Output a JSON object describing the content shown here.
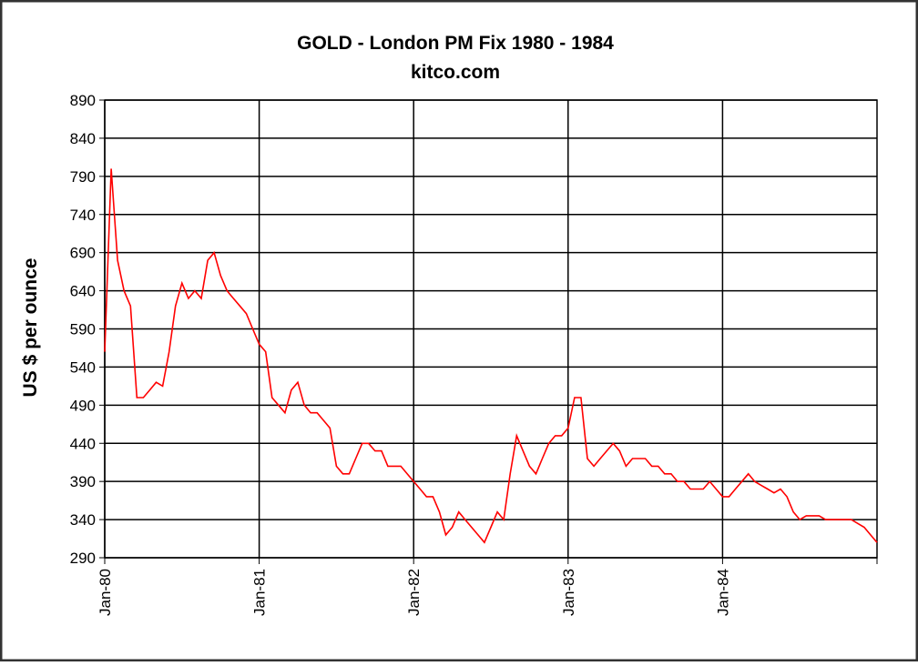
{
  "chart_data": {
    "type": "line",
    "title": "GOLD  -  London  PM  Fix  1980  -  1984",
    "subtitle": "kitco.com",
    "y_label": "US $ per ounce",
    "categories": [
      "Jan-80",
      null,
      null,
      null,
      null,
      null,
      null,
      null,
      null,
      null,
      null,
      null,
      null,
      null,
      null,
      null,
      null,
      null,
      null,
      null,
      null,
      null,
      null,
      null,
      "Jan-81",
      null,
      null,
      null,
      null,
      null,
      null,
      null,
      null,
      null,
      null,
      null,
      null,
      null,
      null,
      null,
      null,
      null,
      null,
      null,
      null,
      null,
      null,
      null,
      "Jan-82",
      null,
      null,
      null,
      null,
      null,
      null,
      null,
      null,
      null,
      null,
      null,
      null,
      null,
      null,
      null,
      null,
      null,
      null,
      null,
      null,
      null,
      null,
      null,
      "Jan-83",
      null,
      null,
      null,
      null,
      null,
      null,
      null,
      null,
      null,
      null,
      null,
      null,
      null,
      null,
      null,
      null,
      null,
      null,
      null,
      null,
      null,
      null,
      null,
      "Jan-84",
      null,
      null,
      null,
      null,
      null,
      null,
      null,
      null,
      null,
      null,
      null,
      null,
      null,
      null,
      null,
      null,
      null,
      null,
      null,
      null,
      null,
      null,
      null,
      null
    ],
    "series": [
      {
        "color": "#ff0000",
        "values": [
          560,
          800,
          680,
          640,
          620,
          500,
          500,
          510,
          520,
          515,
          560,
          620,
          650,
          630,
          640,
          630,
          680,
          690,
          660,
          640,
          630,
          620,
          610,
          590,
          570,
          560,
          500,
          490,
          480,
          510,
          520,
          490,
          480,
          480,
          470,
          460,
          410,
          400,
          400,
          420,
          440,
          440,
          430,
          430,
          410,
          410,
          410,
          400,
          390,
          380,
          370,
          370,
          350,
          320,
          330,
          350,
          340,
          330,
          320,
          310,
          330,
          350,
          340,
          400,
          450,
          430,
          410,
          400,
          420,
          440,
          450,
          450,
          460,
          500,
          500,
          420,
          410,
          420,
          430,
          440,
          430,
          410,
          420,
          420,
          420,
          410,
          410,
          400,
          400,
          390,
          390,
          380,
          380,
          380,
          390,
          380,
          370,
          370,
          380,
          390,
          400,
          390,
          385,
          380,
          375,
          380,
          370,
          350,
          340,
          345,
          345,
          345,
          340,
          340,
          340,
          340,
          340,
          335,
          330,
          320,
          310
        ]
      }
    ],
    "ylim": [
      290,
      890
    ],
    "yticks": [
      290,
      340,
      390,
      440,
      490,
      540,
      590,
      640,
      690,
      740,
      790,
      840,
      890
    ],
    "grid": true
  }
}
